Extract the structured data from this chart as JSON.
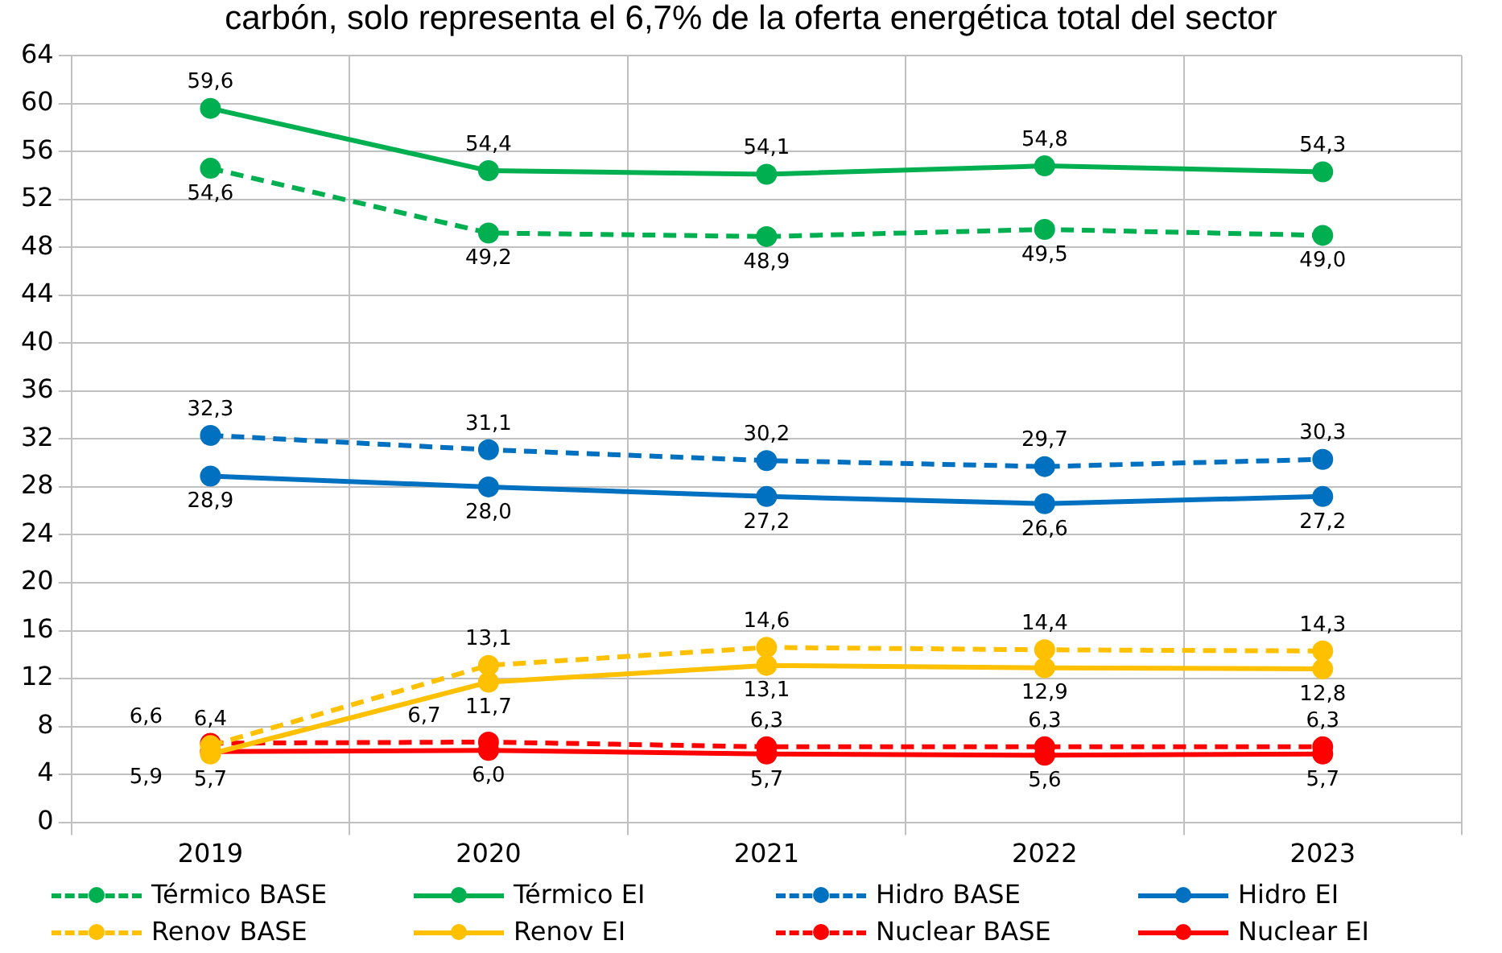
{
  "chart_data": {
    "type": "line",
    "title": "carbón, solo representa el 6,7% de la oferta energética total del sector",
    "categories": [
      "2019",
      "2020",
      "2021",
      "2022",
      "2023"
    ],
    "series": [
      {
        "name": "Térmico BASE",
        "color": "#00b050",
        "line_style": "dashed",
        "values": [
          54.6,
          49.2,
          48.9,
          49.5,
          49.0
        ],
        "value_labels": [
          "54,6",
          "49,2",
          "48,9",
          "49,5",
          "49,0"
        ]
      },
      {
        "name": "Térmico EI",
        "color": "#00b050",
        "line_style": "solid",
        "values": [
          59.6,
          54.4,
          54.1,
          54.8,
          54.3
        ],
        "value_labels": [
          "59,6",
          "54,4",
          "54,1",
          "54,8",
          "54,3"
        ]
      },
      {
        "name": "Hidro BASE",
        "color": "#0070c0",
        "line_style": "dashed",
        "values": [
          32.3,
          31.1,
          30.2,
          29.7,
          30.3
        ],
        "value_labels": [
          "32,3",
          "31,1",
          "30,2",
          "29,7",
          "30,3"
        ]
      },
      {
        "name": "Hidro EI",
        "color": "#0070c0",
        "line_style": "solid",
        "values": [
          28.9,
          28.0,
          27.2,
          26.6,
          27.2
        ],
        "value_labels": [
          "28,9",
          "28,0",
          "27,2",
          "26,6",
          "27,2"
        ]
      },
      {
        "name": "Renov BASE",
        "color": "#ffc000",
        "line_style": "dashed",
        "values": [
          6.4,
          13.1,
          14.6,
          14.4,
          14.3
        ],
        "value_labels": [
          "6,4",
          "13,1",
          "14,6",
          "14,4",
          "14,3"
        ]
      },
      {
        "name": "Renov EI",
        "color": "#ffc000",
        "line_style": "solid",
        "values": [
          5.7,
          11.7,
          13.1,
          12.9,
          12.8
        ],
        "value_labels": [
          "5,7",
          "11,7",
          "13,1",
          "12,9",
          "12,8"
        ]
      },
      {
        "name": "Nuclear BASE",
        "color": "#ff0000",
        "line_style": "dashed",
        "values": [
          6.6,
          6.7,
          6.3,
          6.3,
          6.3
        ],
        "value_labels": [
          "6,6",
          "6,7",
          "6,3",
          "6,3",
          "6,3"
        ]
      },
      {
        "name": "Nuclear EI",
        "color": "#ff0000",
        "line_style": "solid",
        "values": [
          5.9,
          6.0,
          5.7,
          5.6,
          5.7
        ],
        "value_labels": [
          "5,9",
          "6,0",
          "5,7",
          "5,6",
          "5,7"
        ]
      }
    ],
    "ylim": [
      0,
      64
    ],
    "yticks": [
      0,
      4,
      8,
      12,
      16,
      20,
      24,
      28,
      32,
      36,
      40,
      44,
      48,
      52,
      56,
      60,
      64
    ],
    "grid": true,
    "legend": "bottom",
    "marker": "circle"
  }
}
